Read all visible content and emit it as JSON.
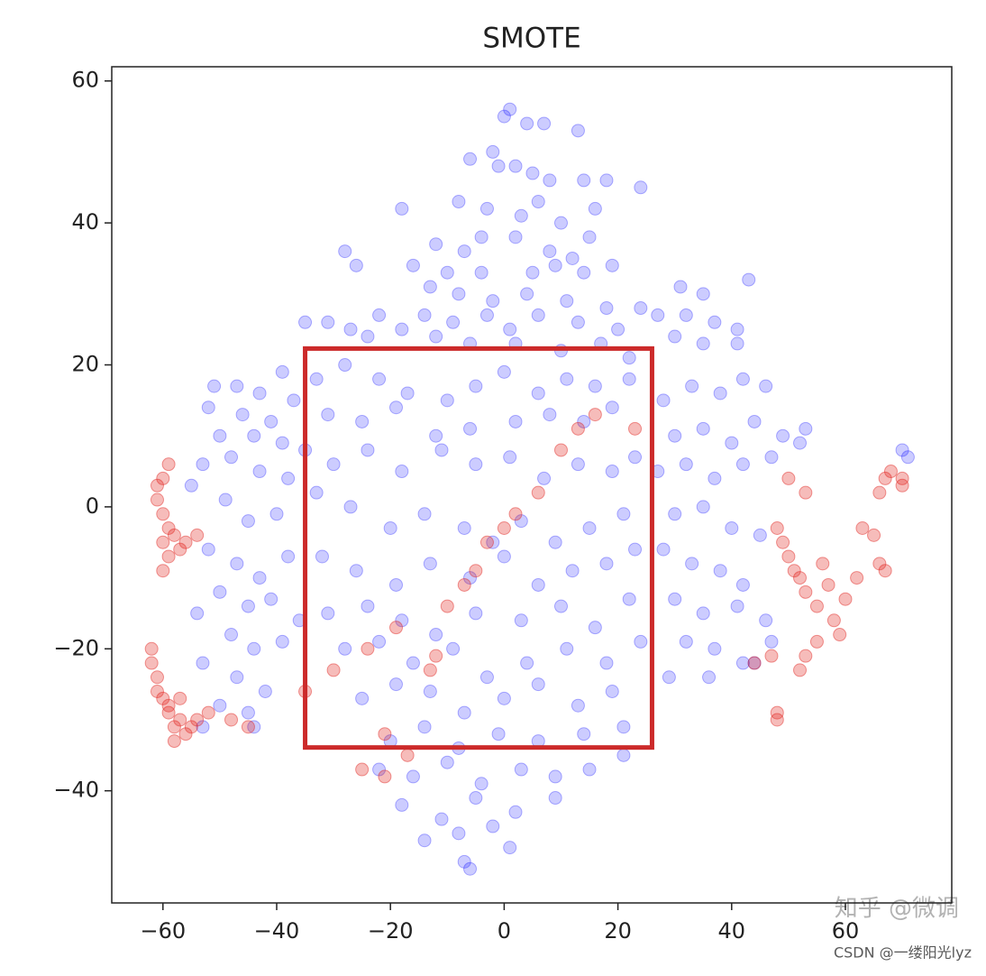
{
  "chart_data": {
    "type": "scatter",
    "title": "SMOTE",
    "xlim": [
      -69,
      78.7
    ],
    "ylim": [
      -55.8,
      62
    ],
    "xticks": [
      {
        "value": -60,
        "label": "−60"
      },
      {
        "value": -40,
        "label": "−40"
      },
      {
        "value": -20,
        "label": "−20"
      },
      0,
      20,
      40,
      60
    ],
    "yticks": [
      {
        "value": -40,
        "label": "−40"
      },
      {
        "value": -20,
        "label": "−20"
      },
      0,
      20,
      40,
      60
    ],
    "grid": false,
    "series": [
      {
        "color": "#0000ff",
        "alpha": 0.2,
        "x": [
          1,
          0,
          4,
          7,
          13,
          -6,
          -2,
          -1,
          2,
          5,
          8,
          14,
          18,
          24,
          -18,
          -8,
          -3,
          3,
          6,
          10,
          16,
          15,
          -12,
          -7,
          -4,
          2,
          8,
          12,
          19,
          -28,
          -26,
          -16,
          -10,
          -4,
          5,
          9,
          14,
          -13,
          -8,
          -2,
          4,
          11,
          18,
          24,
          31,
          35,
          43,
          -35,
          -31,
          -27,
          -22,
          -18,
          -14,
          -9,
          -3,
          1,
          6,
          13,
          20,
          27,
          32,
          37,
          41,
          -24,
          -12,
          -6,
          2,
          10,
          17,
          22,
          30,
          35,
          41,
          -51,
          -47,
          -43,
          -39,
          -52,
          -46,
          -41,
          -37,
          -50,
          -44,
          -39,
          -35,
          -53,
          -48,
          -43,
          -38,
          -55,
          -49,
          -45,
          -40,
          -52,
          -47,
          -43,
          -38,
          -50,
          -45,
          -41,
          -36,
          -54,
          -48,
          -44,
          -39,
          -53,
          -47,
          -42,
          -50,
          -45,
          -53,
          -44,
          -33,
          -28,
          -22,
          -17,
          -10,
          -5,
          0,
          6,
          11,
          16,
          22,
          -31,
          -25,
          -19,
          -12,
          -6,
          2,
          8,
          14,
          19,
          -30,
          -24,
          -18,
          -11,
          -5,
          1,
          7,
          13,
          19,
          23,
          -33,
          -27,
          -20,
          -14,
          -7,
          -2,
          3,
          9,
          15,
          21,
          -32,
          -26,
          -19,
          -13,
          -6,
          0,
          6,
          12,
          18,
          23,
          -31,
          -24,
          -18,
          -12,
          -5,
          3,
          10,
          16,
          22,
          -28,
          -22,
          -16,
          -9,
          -3,
          4,
          11,
          18,
          24,
          -25,
          -19,
          -13,
          -7,
          0,
          6,
          13,
          19,
          -20,
          -14,
          -8,
          -1,
          6,
          14,
          21,
          -22,
          -16,
          -10,
          -4,
          3,
          9,
          15,
          21,
          -18,
          -11,
          -5,
          2,
          9,
          -14,
          -8,
          -2,
          1,
          -7,
          -6,
          28,
          33,
          38,
          42,
          46,
          30,
          35,
          40,
          44,
          49,
          53,
          27,
          32,
          37,
          42,
          47,
          52,
          30,
          35,
          40,
          45,
          28,
          33,
          38,
          42,
          30,
          35,
          41,
          46,
          32,
          37,
          42,
          47,
          29,
          36,
          44,
          70,
          71
        ],
        "values": [
          56,
          55,
          54,
          54,
          53,
          49,
          50,
          48,
          48,
          47,
          46,
          46,
          46,
          45,
          42,
          43,
          42,
          41,
          43,
          40,
          42,
          38,
          37,
          36,
          38,
          38,
          36,
          35,
          34,
          36,
          34,
          34,
          33,
          33,
          33,
          34,
          33,
          31,
          30,
          29,
          30,
          29,
          28,
          28,
          31,
          30,
          32,
          26,
          26,
          25,
          27,
          25,
          27,
          26,
          27,
          25,
          27,
          26,
          25,
          27,
          27,
          26,
          25,
          24,
          24,
          23,
          23,
          22,
          23,
          21,
          24,
          23,
          23,
          17,
          17,
          16,
          19,
          14,
          13,
          12,
          15,
          10,
          10,
          9,
          8,
          6,
          7,
          5,
          4,
          3,
          1,
          -2,
          -1,
          -6,
          -8,
          -10,
          -7,
          -12,
          -14,
          -13,
          -16,
          -15,
          -18,
          -20,
          -19,
          -22,
          -24,
          -26,
          -28,
          -29,
          -31,
          -31,
          18,
          20,
          18,
          16,
          15,
          17,
          19,
          16,
          18,
          17,
          18,
          13,
          12,
          14,
          10,
          11,
          12,
          13,
          12,
          14,
          6,
          8,
          5,
          8,
          6,
          7,
          4,
          6,
          5,
          7,
          2,
          0,
          -3,
          -1,
          -3,
          -5,
          -2,
          -5,
          -3,
          -1,
          -7,
          -9,
          -11,
          -8,
          -10,
          -7,
          -11,
          -9,
          -8,
          -6,
          -15,
          -14,
          -16,
          -18,
          -15,
          -16,
          -14,
          -17,
          -13,
          -20,
          -19,
          -22,
          -20,
          -24,
          -22,
          -20,
          -22,
          -19,
          -27,
          -25,
          -26,
          -29,
          -27,
          -25,
          -28,
          -26,
          -33,
          -31,
          -34,
          -32,
          -33,
          -32,
          -31,
          -37,
          -38,
          -36,
          -39,
          -37,
          -38,
          -37,
          -35,
          -42,
          -44,
          -41,
          -43,
          -41,
          -47,
          -46,
          -45,
          -48,
          -50,
          -51,
          15,
          17,
          16,
          18,
          17,
          10,
          11,
          9,
          12,
          10,
          11,
          5,
          6,
          4,
          6,
          7,
          9,
          -1,
          0,
          -3,
          -4,
          -6,
          -8,
          -9,
          -11,
          -13,
          -15,
          -14,
          -16,
          -19,
          -20,
          -22,
          -19,
          -24,
          -24,
          -22,
          8,
          7
        ]
      },
      {
        "color": "#e0201a",
        "alpha": 0.3,
        "x": [
          -59,
          -60,
          -61,
          -61,
          -60,
          -59,
          -60,
          -58,
          -57,
          -59,
          -60,
          -56,
          -54,
          -62,
          -62,
          -61,
          -61,
          -60,
          -59,
          -58,
          -58,
          -57,
          -56,
          -55,
          -54,
          -59,
          -57,
          -52,
          -48,
          -45,
          -35,
          -30,
          -24,
          -19,
          -13,
          -12,
          -10,
          -7,
          -5,
          -3,
          0,
          2,
          6,
          10,
          13,
          16,
          23,
          -17,
          -21,
          -25,
          -21,
          48,
          49,
          50,
          51,
          52,
          53,
          55,
          56,
          57,
          58,
          59,
          55,
          53,
          52,
          60,
          62,
          63,
          65,
          66,
          67,
          47,
          44,
          48,
          48,
          50,
          53,
          66,
          67,
          68,
          70,
          70
        ],
        "values": [
          6,
          4,
          3,
          1,
          -1,
          -3,
          -5,
          -4,
          -6,
          -7,
          -9,
          -5,
          -4,
          -20,
          -22,
          -24,
          -26,
          -27,
          -29,
          -31,
          -33,
          -30,
          -32,
          -31,
          -30,
          -28,
          -27,
          -29,
          -30,
          -31,
          -26,
          -23,
          -20,
          -17,
          -23,
          -21,
          -14,
          -11,
          -9,
          -5,
          -3,
          -1,
          2,
          8,
          11,
          13,
          11,
          -35,
          -32,
          -37,
          -38,
          -3,
          -5,
          -7,
          -9,
          -10,
          -12,
          -14,
          -8,
          -11,
          -16,
          -18,
          -19,
          -21,
          -23,
          -13,
          -10,
          -3,
          -4,
          -8,
          -9,
          -21,
          -22,
          -29,
          -30,
          4,
          2,
          2,
          4,
          5,
          4,
          3
        ]
      }
    ],
    "highlight_box": {
      "x": [
        -35,
        26
      ],
      "y": [
        -33.9,
        22.3
      ],
      "color": "#cc2a2a"
    },
    "watermarks": [
      "知乎 @微调",
      "CSDN @一缕阳光lyz"
    ]
  }
}
